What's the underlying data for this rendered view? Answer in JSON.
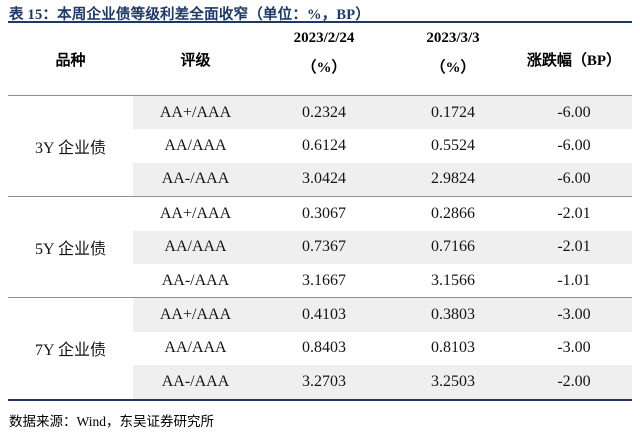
{
  "title": "表 15：本周企业债等级利差全面收窄（单位：%，BP）",
  "header": {
    "variety": "品种",
    "rating": "评级",
    "date1_line1": "2023/2/24",
    "date1_line2": "（%）",
    "date2_line1": "2023/3/3",
    "date2_line2": "（%）",
    "change": "涨跌幅（BP）"
  },
  "groups": [
    {
      "variety": "3Y 企业债",
      "rows": [
        {
          "rating": "AA+/AAA",
          "prev": "0.2324",
          "curr": "0.1724",
          "change": "-6.00"
        },
        {
          "rating": "AA/AAA",
          "prev": "0.6124",
          "curr": "0.5524",
          "change": "-6.00"
        },
        {
          "rating": "AA-/AAA",
          "prev": "3.0424",
          "curr": "2.9824",
          "change": "-6.00"
        }
      ]
    },
    {
      "variety": "5Y 企业债",
      "rows": [
        {
          "rating": "AA+/AAA",
          "prev": "0.3067",
          "curr": "0.2866",
          "change": "-2.01"
        },
        {
          "rating": "AA/AAA",
          "prev": "0.7367",
          "curr": "0.7166",
          "change": "-2.01"
        },
        {
          "rating": "AA-/AAA",
          "prev": "3.1667",
          "curr": "3.1566",
          "change": "-1.01"
        }
      ]
    },
    {
      "variety": "7Y 企业债",
      "rows": [
        {
          "rating": "AA+/AAA",
          "prev": "0.4103",
          "curr": "0.3803",
          "change": "-3.00"
        },
        {
          "rating": "AA/AAA",
          "prev": "0.8403",
          "curr": "0.8103",
          "change": "-3.00"
        },
        {
          "rating": "AA-/AAA",
          "prev": "3.2703",
          "curr": "3.2503",
          "change": "-2.00"
        }
      ]
    }
  ],
  "footer": "数据来源：Wind，东吴证券研究所",
  "colors": {
    "navy": "#1F3864",
    "line_gray": "#909090",
    "stripe": "#EFEFEF"
  },
  "chart_data": {
    "type": "table",
    "title": "表 15：本周企业债等级利差全面收窄（单位：%，BP）",
    "columns": [
      "品种",
      "评级",
      "2023/2/24（%）",
      "2023/3/3（%）",
      "涨跌幅（BP）"
    ],
    "rows": [
      [
        "3Y 企业债",
        "AA+/AAA",
        0.2324,
        0.1724,
        -6.0
      ],
      [
        "3Y 企业债",
        "AA/AAA",
        0.6124,
        0.5524,
        -6.0
      ],
      [
        "3Y 企业债",
        "AA-/AAA",
        3.0424,
        2.9824,
        -6.0
      ],
      [
        "5Y 企业债",
        "AA+/AAA",
        0.3067,
        0.2866,
        -2.01
      ],
      [
        "5Y 企业债",
        "AA/AAA",
        0.7367,
        0.7166,
        -2.01
      ],
      [
        "5Y 企业债",
        "AA-/AAA",
        3.1667,
        3.1566,
        -1.01
      ],
      [
        "7Y 企业债",
        "AA+/AAA",
        0.4103,
        0.3803,
        -3.0
      ],
      [
        "7Y 企业债",
        "AA/AAA",
        0.8403,
        0.8103,
        -3.0
      ],
      [
        "7Y 企业债",
        "AA-/AAA",
        3.2703,
        3.2503,
        -2.0
      ]
    ],
    "source": "数据来源：Wind，东吴证券研究所",
    "layout": {
      "zebra_striping": "alternating rows shaded gray starting with first data row, stripes span rating column through last column only",
      "grid": "horizontal rules only: navy under title, gray under header and between maturity groups, navy above source line"
    }
  }
}
